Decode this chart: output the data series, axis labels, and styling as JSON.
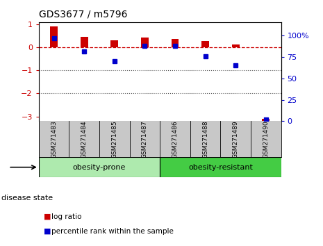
{
  "title": "GDS3677 / m5796",
  "samples": [
    "GSM271483",
    "GSM271484",
    "GSM271485",
    "GSM271487",
    "GSM271486",
    "GSM271488",
    "GSM271489",
    "GSM271490"
  ],
  "log_ratio": [
    0.9,
    0.45,
    0.3,
    0.42,
    0.38,
    0.28,
    0.12,
    -3.1
  ],
  "percentile_rank": [
    97,
    82,
    70,
    88,
    88,
    76,
    65,
    2
  ],
  "ylim_left": [
    -3.2,
    1.1
  ],
  "ylim_right": [
    0,
    116
  ],
  "yticks_left": [
    -3,
    -2,
    -1,
    0,
    1
  ],
  "yticks_right": [
    0,
    25,
    50,
    75,
    100
  ],
  "groups": [
    {
      "label": "obesity-prone",
      "start": 0,
      "end": 4,
      "color": "#AEEAAE"
    },
    {
      "label": "obesity-resistant",
      "start": 4,
      "end": 8,
      "color": "#44CC44"
    }
  ],
  "bar_color_red": "#CC0000",
  "bar_color_blue": "#0000CC",
  "zero_line_color": "#CC0000",
  "dotted_line_color": "#555555",
  "bg_color": "#FFFFFF",
  "sample_box_color": "#C8C8C8",
  "legend_log_ratio": "log ratio",
  "legend_percentile": "percentile rank within the sample",
  "disease_state_label": "disease state"
}
